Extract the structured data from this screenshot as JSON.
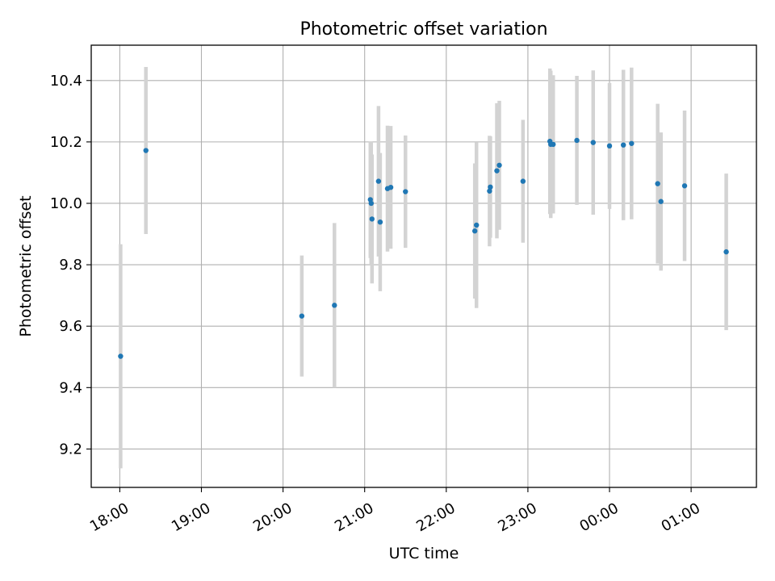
{
  "chart_data": {
    "type": "scatter",
    "title": "Photometric offset variation",
    "xlabel": "UTC time",
    "ylabel": "Photometric offset",
    "x_axis": "time (hours, UTC; values past 24 are after midnight)",
    "xlim": [
      17.65,
      25.8
    ],
    "ylim": [
      9.075,
      10.515
    ],
    "xticks": [
      {
        "value": 18,
        "label": "18:00"
      },
      {
        "value": 19,
        "label": "19:00"
      },
      {
        "value": 20,
        "label": "20:00"
      },
      {
        "value": 21,
        "label": "21:00"
      },
      {
        "value": 22,
        "label": "22:00"
      },
      {
        "value": 23,
        "label": "23:00"
      },
      {
        "value": 24,
        "label": "00:00"
      },
      {
        "value": 25,
        "label": "01:00"
      }
    ],
    "yticks": [
      {
        "value": 9.2,
        "label": "9.2"
      },
      {
        "value": 9.4,
        "label": "9.4"
      },
      {
        "value": 9.6,
        "label": "9.6"
      },
      {
        "value": 9.8,
        "label": "9.8"
      },
      {
        "value": 10.0,
        "label": "10.0"
      },
      {
        "value": 10.2,
        "label": "10.2"
      },
      {
        "value": 10.4,
        "label": "10.4"
      }
    ],
    "grid": true,
    "marker_color": "#1f77b4",
    "errorbar_color": "#d3d3d3",
    "points": [
      {
        "x": 18.01,
        "y": 9.502,
        "err": 0.365
      },
      {
        "x": 18.32,
        "y": 10.172,
        "err": 0.272
      },
      {
        "x": 20.23,
        "y": 9.633,
        "err": 0.197
      },
      {
        "x": 20.63,
        "y": 9.668,
        "err": 0.268
      },
      {
        "x": 21.07,
        "y": 10.012,
        "err": 0.19
      },
      {
        "x": 21.08,
        "y": 10.0,
        "err": 0.2
      },
      {
        "x": 21.09,
        "y": 9.949,
        "err": 0.21
      },
      {
        "x": 21.17,
        "y": 10.072,
        "err": 0.245
      },
      {
        "x": 21.19,
        "y": 9.939,
        "err": 0.225
      },
      {
        "x": 21.28,
        "y": 10.048,
        "err": 0.205
      },
      {
        "x": 21.32,
        "y": 10.052,
        "err": 0.2
      },
      {
        "x": 21.5,
        "y": 10.038,
        "err": 0.183
      },
      {
        "x": 22.35,
        "y": 9.91,
        "err": 0.22
      },
      {
        "x": 22.37,
        "y": 9.929,
        "err": 0.27
      },
      {
        "x": 22.53,
        "y": 10.04,
        "err": 0.18
      },
      {
        "x": 22.54,
        "y": 10.053,
        "err": 0.165
      },
      {
        "x": 22.62,
        "y": 10.106,
        "err": 0.22
      },
      {
        "x": 22.65,
        "y": 10.124,
        "err": 0.21
      },
      {
        "x": 22.94,
        "y": 10.072,
        "err": 0.2
      },
      {
        "x": 23.27,
        "y": 10.202,
        "err": 0.237
      },
      {
        "x": 23.28,
        "y": 10.192,
        "err": 0.24
      },
      {
        "x": 23.31,
        "y": 10.192,
        "err": 0.225
      },
      {
        "x": 23.6,
        "y": 10.205,
        "err": 0.21
      },
      {
        "x": 23.8,
        "y": 10.198,
        "err": 0.235
      },
      {
        "x": 24.0,
        "y": 10.187,
        "err": 0.205
      },
      {
        "x": 24.17,
        "y": 10.19,
        "err": 0.245
      },
      {
        "x": 24.27,
        "y": 10.195,
        "err": 0.247
      },
      {
        "x": 24.59,
        "y": 10.064,
        "err": 0.26
      },
      {
        "x": 24.63,
        "y": 10.006,
        "err": 0.225
      },
      {
        "x": 24.92,
        "y": 10.057,
        "err": 0.245
      },
      {
        "x": 25.43,
        "y": 9.842,
        "err": 0.255
      }
    ]
  }
}
